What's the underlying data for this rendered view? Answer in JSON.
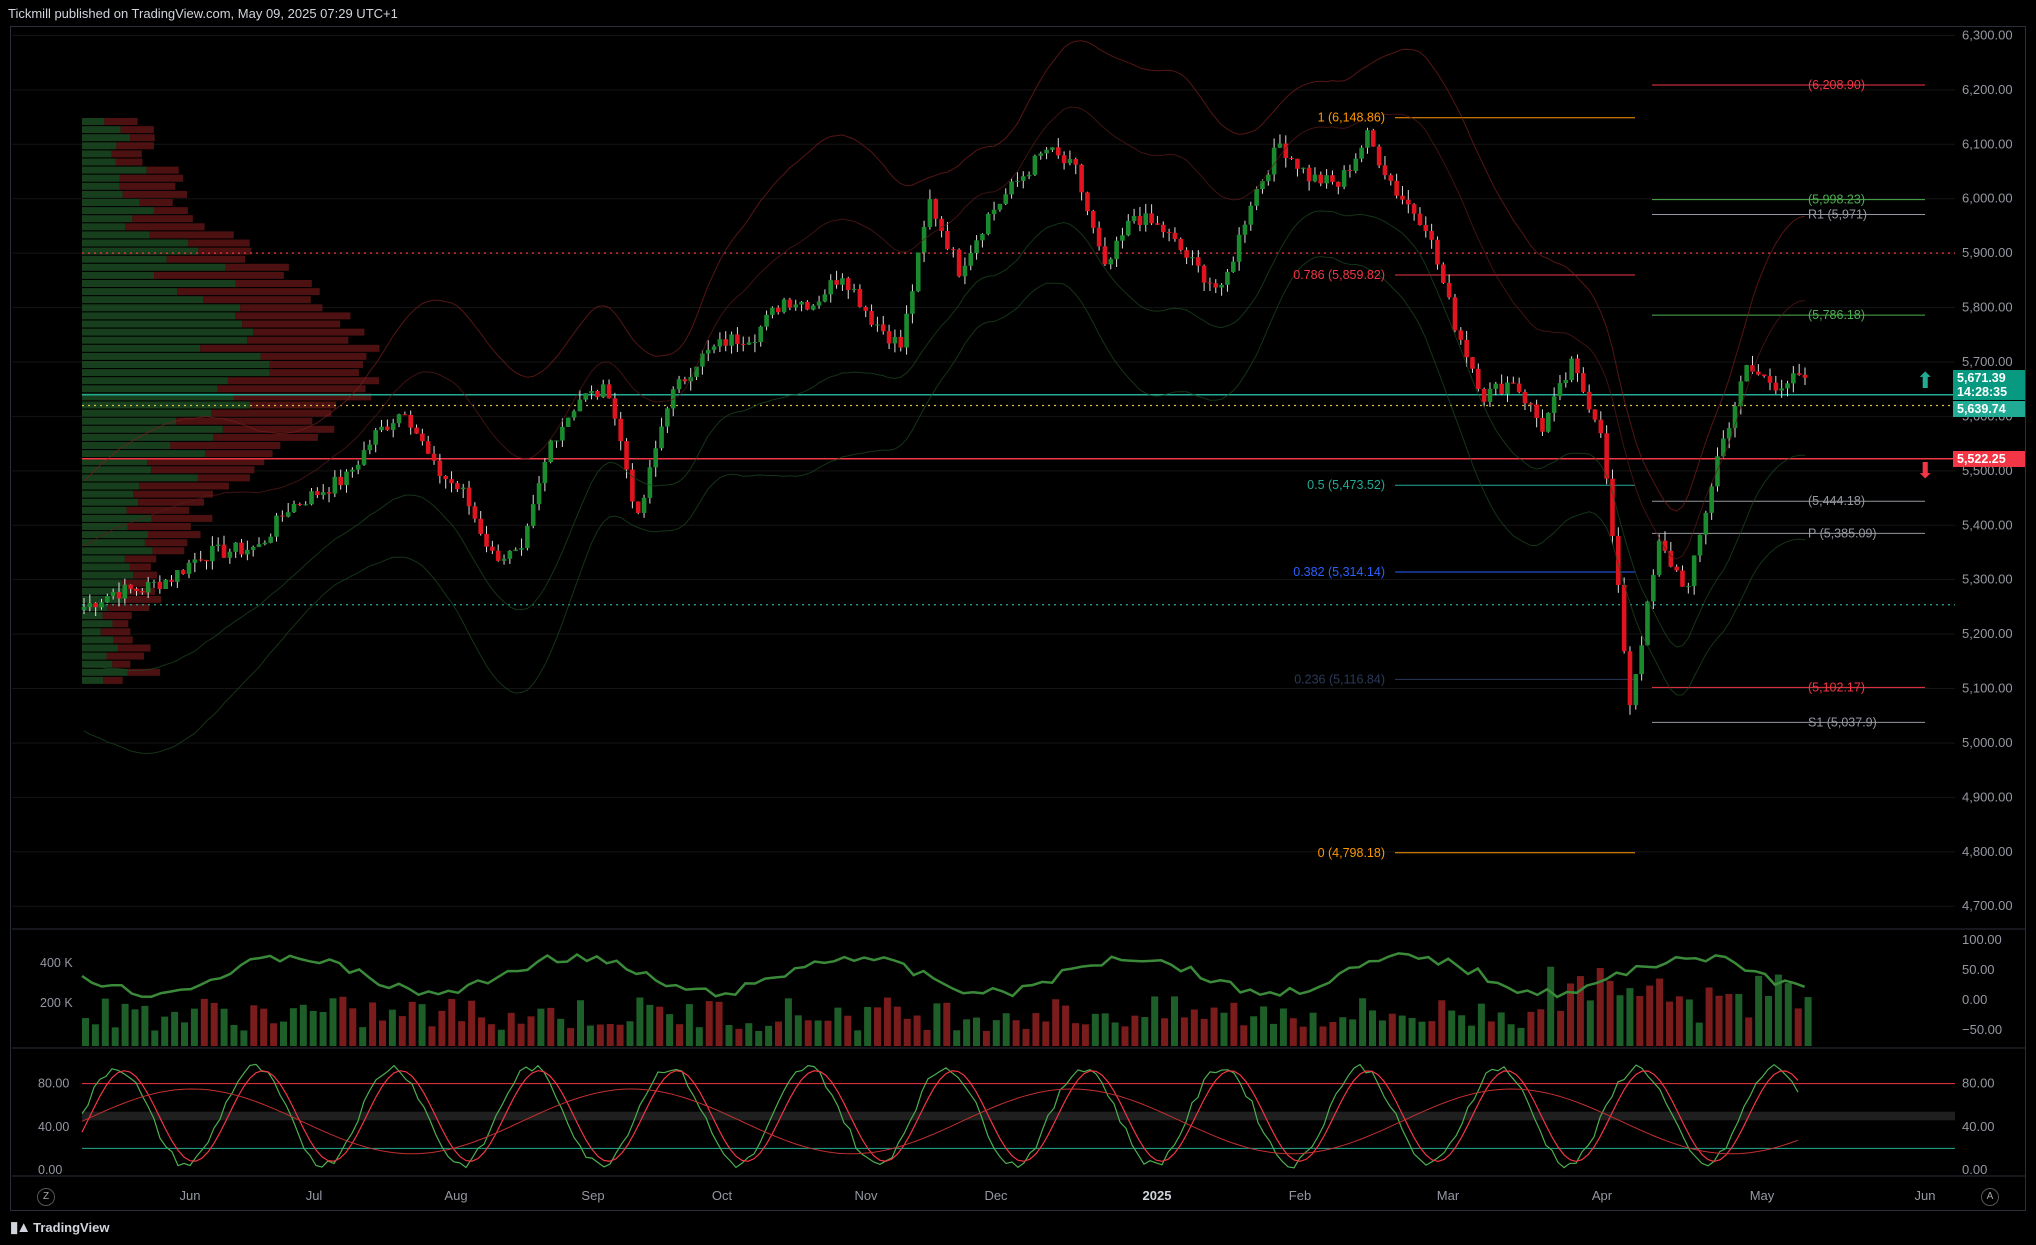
{
  "header": {
    "text": "Tickmill published on TradingView.com, May 09, 2025 07:29 UTC+1"
  },
  "footer": {
    "brand": "TradingView"
  },
  "corner_buttons": {
    "left": "Z",
    "right": "A"
  },
  "colors": {
    "bg": "#000000",
    "bull": "#22ab94",
    "bear": "#f23645",
    "grid": "#1a1a1a",
    "fib": "#ff9800"
  },
  "price_tags": {
    "last": "5,671.39",
    "countdown": "14:28:35",
    "level_green": "5,639.74",
    "level_red": "5,522.25"
  },
  "chart_data": [
    {
      "type": "candlestick",
      "title": "",
      "x_labels": [
        "Jun",
        "Jul",
        "Aug",
        "Sep",
        "Oct",
        "Nov",
        "Dec",
        "2025",
        "Feb",
        "Mar",
        "Apr",
        "May",
        "Jun"
      ],
      "y_ticks": [
        "6,300.00",
        "6,200.00",
        "6,100.00",
        "6,000.00",
        "5,900.00",
        "5,800.00",
        "5,700.00",
        "5,600.00",
        "5,500.00",
        "5,400.00",
        "5,300.00",
        "5,200.00",
        "5,100.00",
        "5,000.00",
        "4,900.00",
        "4,800.00",
        "4,700.00"
      ],
      "ylim": [
        4660,
        6310
      ],
      "weekly_closes": [
        5250,
        5277,
        5283,
        5304,
        5346,
        5353,
        5360,
        5432,
        5460,
        5487,
        5567,
        5615,
        5505,
        5459,
        5346,
        5344,
        5554,
        5634,
        5648,
        5408,
        5626,
        5702,
        5738,
        5751,
        5815,
        5808,
        5864,
        5780,
        5728,
        5995,
        5870,
        5969,
        6032,
        6090,
        6051,
        5867,
        5970,
        5942,
        5881,
        5827,
        5996,
        6101,
        6040,
        6025,
        6114,
        6013,
        5954,
        5770,
        5638,
        5667,
        5580,
        5693,
        5580,
        5074,
        5363,
        5282,
        5525,
        5687,
        5660,
        5671
      ],
      "horizontal_lines": [
        {
          "price": 5639.74,
          "color": "#22ab94"
        },
        {
          "price": 5522.25,
          "color": "#f23645"
        }
      ],
      "dotted_lines": [
        {
          "price": 5900,
          "color": "#f23645"
        },
        {
          "price": 5620,
          "color": "#e0c040"
        },
        {
          "price": 5254,
          "color": "#22ab94"
        }
      ],
      "fib_levels": [
        {
          "label": "1 (6,148.86)",
          "price": 6148.86,
          "color": "#ff9800"
        },
        {
          "label": "0.786 (5,859.82)",
          "price": 5859.82,
          "color": "#f23645"
        },
        {
          "label": "0.5 (5,473.52)",
          "price": 5473.52,
          "color": "#22ab94"
        },
        {
          "label": "0.382 (5,314.14)",
          "price": 5314.14,
          "color": "#2962ff"
        },
        {
          "label": "0.236 (5,116.84)",
          "price": 5116.84,
          "color": "#2a3a5a"
        },
        {
          "label": "0 (4,798.18)",
          "price": 4798.18,
          "color": "#ff9800"
        }
      ],
      "pivot_levels": [
        {
          "label": "(6,208.90)",
          "price": 6208.9,
          "color": "#f23645"
        },
        {
          "label": "(5,998.23)",
          "price": 5998.23,
          "color": "#4caf50"
        },
        {
          "label": "R1 (5,971)",
          "price": 5971,
          "color": "#9598a1"
        },
        {
          "label": "(5,786.18)",
          "price": 5786.18,
          "color": "#4caf50"
        },
        {
          "label": "(5,444.18)",
          "price": 5444.18,
          "color": "#9598a1"
        },
        {
          "label": "P (5,385.09)",
          "price": 5385.09,
          "color": "#9598a1"
        },
        {
          "label": "(5,102.17)",
          "price": 5102.17,
          "color": "#f23645"
        },
        {
          "label": "S1 (5,037.9)",
          "price": 5037.9,
          "color": "#9598a1"
        }
      ]
    },
    {
      "type": "bar",
      "title": "",
      "y_ticks_left": [
        "400 K",
        "200 K"
      ],
      "y_ticks_right": [
        "100.00",
        "50.00",
        "0.00",
        "−50.00"
      ]
    },
    {
      "type": "line",
      "title": "",
      "y_ticks_left": [
        "80.00",
        "40.00",
        "0.00"
      ],
      "y_ticks_right": [
        "80.00",
        "40.00",
        "0.00"
      ]
    }
  ]
}
